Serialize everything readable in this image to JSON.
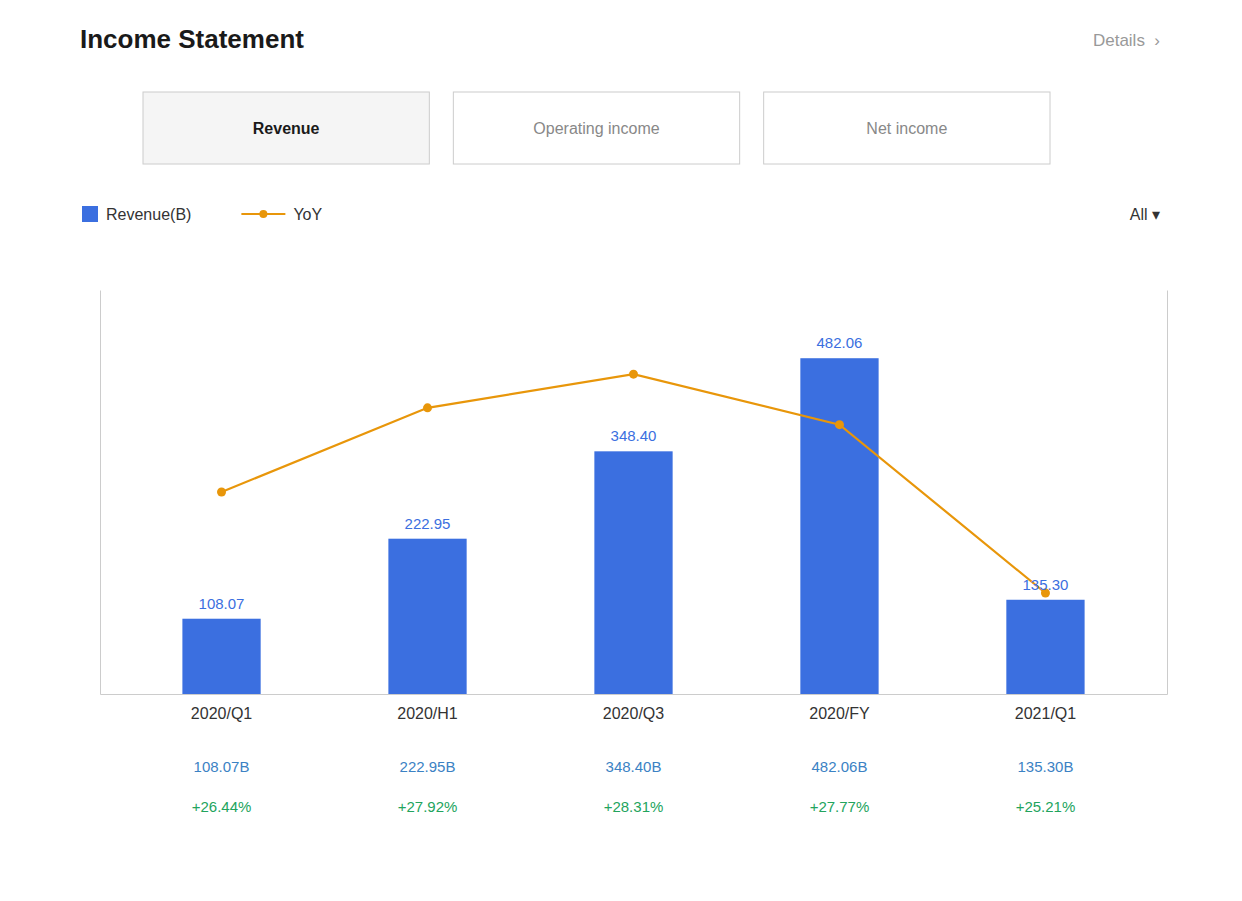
{
  "chart_data": {
    "type": "bar",
    "title": "Income Statement",
    "tabs": [
      "Revenue",
      "Operating income",
      "Net income"
    ],
    "annotations": [
      "Details  ›",
      "All ▾"
    ],
    "categories": [
      "2020/Q1",
      "2020/H1",
      "2020/Q3",
      "2020/FY",
      "2021/Q1"
    ],
    "series": [
      {
        "name": "Revenue(B)",
        "type": "bar",
        "color": "#3B6FE0",
        "values": [
          108.07,
          222.95,
          348.4,
          482.06,
          135.3
        ],
        "value_labels": [
          "108.07",
          "222.95",
          "348.40",
          "482.06",
          "135.30"
        ]
      },
      {
        "name": "YoY",
        "type": "line",
        "axis": "y2",
        "color": "#E8960A",
        "marker": "circle",
        "values": [
          0.42,
          0.52,
          0.56,
          0.5,
          0.3
        ]
      }
    ],
    "annotation_rows": [
      {
        "color": "#3B82C4",
        "labels": [
          "108.07B",
          "222.95B",
          "348.40B",
          "482.06B",
          "135.30B"
        ]
      },
      {
        "color": "#22A45D",
        "labels": [
          "+26.44%",
          "+27.92%",
          "+28.31%",
          "+27.77%",
          "+25.21%"
        ]
      }
    ],
    "ylim": [
      0,
      580
    ],
    "yticks": [],
    "y2lim": [
      0.18,
      0.66
    ],
    "y2ticks": [],
    "data_labels": true,
    "tick_labels": "x",
    "legend": "top",
    "grid": false
  }
}
